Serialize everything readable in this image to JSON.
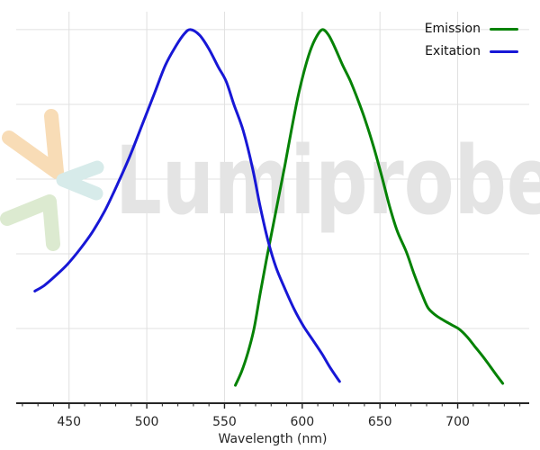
{
  "watermark": {
    "text": "Lumiprobe"
  },
  "legend": {
    "items": [
      {
        "label": "Emission",
        "color": "#058205"
      },
      {
        "label": "Exitation",
        "color": "#1717d6"
      }
    ]
  },
  "colors": {
    "background": "#ffffff",
    "grid": "#e0e0e0",
    "axis": "#262626",
    "text": "#262626",
    "watermark_text": "#e4e4e4",
    "logo_orange": "#f8dcb6",
    "logo_teal": "#d7ebea",
    "logo_green": "#dcead0",
    "emission": "#058205",
    "excitation": "#1717d6"
  },
  "chart_data": {
    "type": "line",
    "title": "",
    "xlabel": "Wavelength (nm)",
    "ylabel": "",
    "xlim": [
      416,
      746
    ],
    "ylim": [
      0,
      1.048
    ],
    "x_major_ticks": [
      450,
      500,
      550,
      600,
      650,
      700
    ],
    "x_minor_tick_step": 10,
    "y_gridlines": [
      0.2,
      0.4,
      0.6,
      0.8,
      1.0
    ],
    "grid": true,
    "legend_position": "top-right",
    "series": [
      {
        "name": "Emission",
        "color": "#058205",
        "peak_nm": 613,
        "x": [
          557,
          561,
          565,
          569,
          573,
          577,
          581,
          585,
          589,
          593,
          597,
          601,
          605,
          609,
          613,
          617,
          621,
          626,
          631,
          636,
          641,
          646,
          651,
          656,
          661,
          667,
          672,
          677,
          681,
          686,
          691,
          696,
          701,
          706,
          711,
          716,
          721,
          725,
          729
        ],
        "y": [
          0.048,
          0.085,
          0.135,
          0.2,
          0.295,
          0.385,
          0.47,
          0.555,
          0.64,
          0.73,
          0.815,
          0.885,
          0.942,
          0.98,
          1.0,
          0.985,
          0.952,
          0.905,
          0.862,
          0.81,
          0.752,
          0.685,
          0.61,
          0.53,
          0.462,
          0.405,
          0.345,
          0.292,
          0.255,
          0.235,
          0.222,
          0.21,
          0.198,
          0.178,
          0.152,
          0.126,
          0.098,
          0.075,
          0.053
        ]
      },
      {
        "name": "Exitation",
        "color": "#1717d6",
        "peak_nm": 528,
        "x": [
          428,
          434,
          441,
          449,
          457,
          465,
          473,
          481,
          489,
          497,
          505,
          512,
          519,
          524,
          528,
          534,
          540,
          546,
          551,
          556,
          562,
          568,
          573,
          578,
          583,
          589,
          595,
          601,
          607,
          613,
          618,
          624
        ],
        "y": [
          0.3,
          0.315,
          0.34,
          0.372,
          0.412,
          0.458,
          0.515,
          0.585,
          0.66,
          0.745,
          0.83,
          0.905,
          0.958,
          0.988,
          1.0,
          0.985,
          0.948,
          0.9,
          0.862,
          0.8,
          0.73,
          0.63,
          0.525,
          0.435,
          0.365,
          0.305,
          0.25,
          0.205,
          0.168,
          0.13,
          0.095,
          0.058
        ]
      }
    ]
  }
}
